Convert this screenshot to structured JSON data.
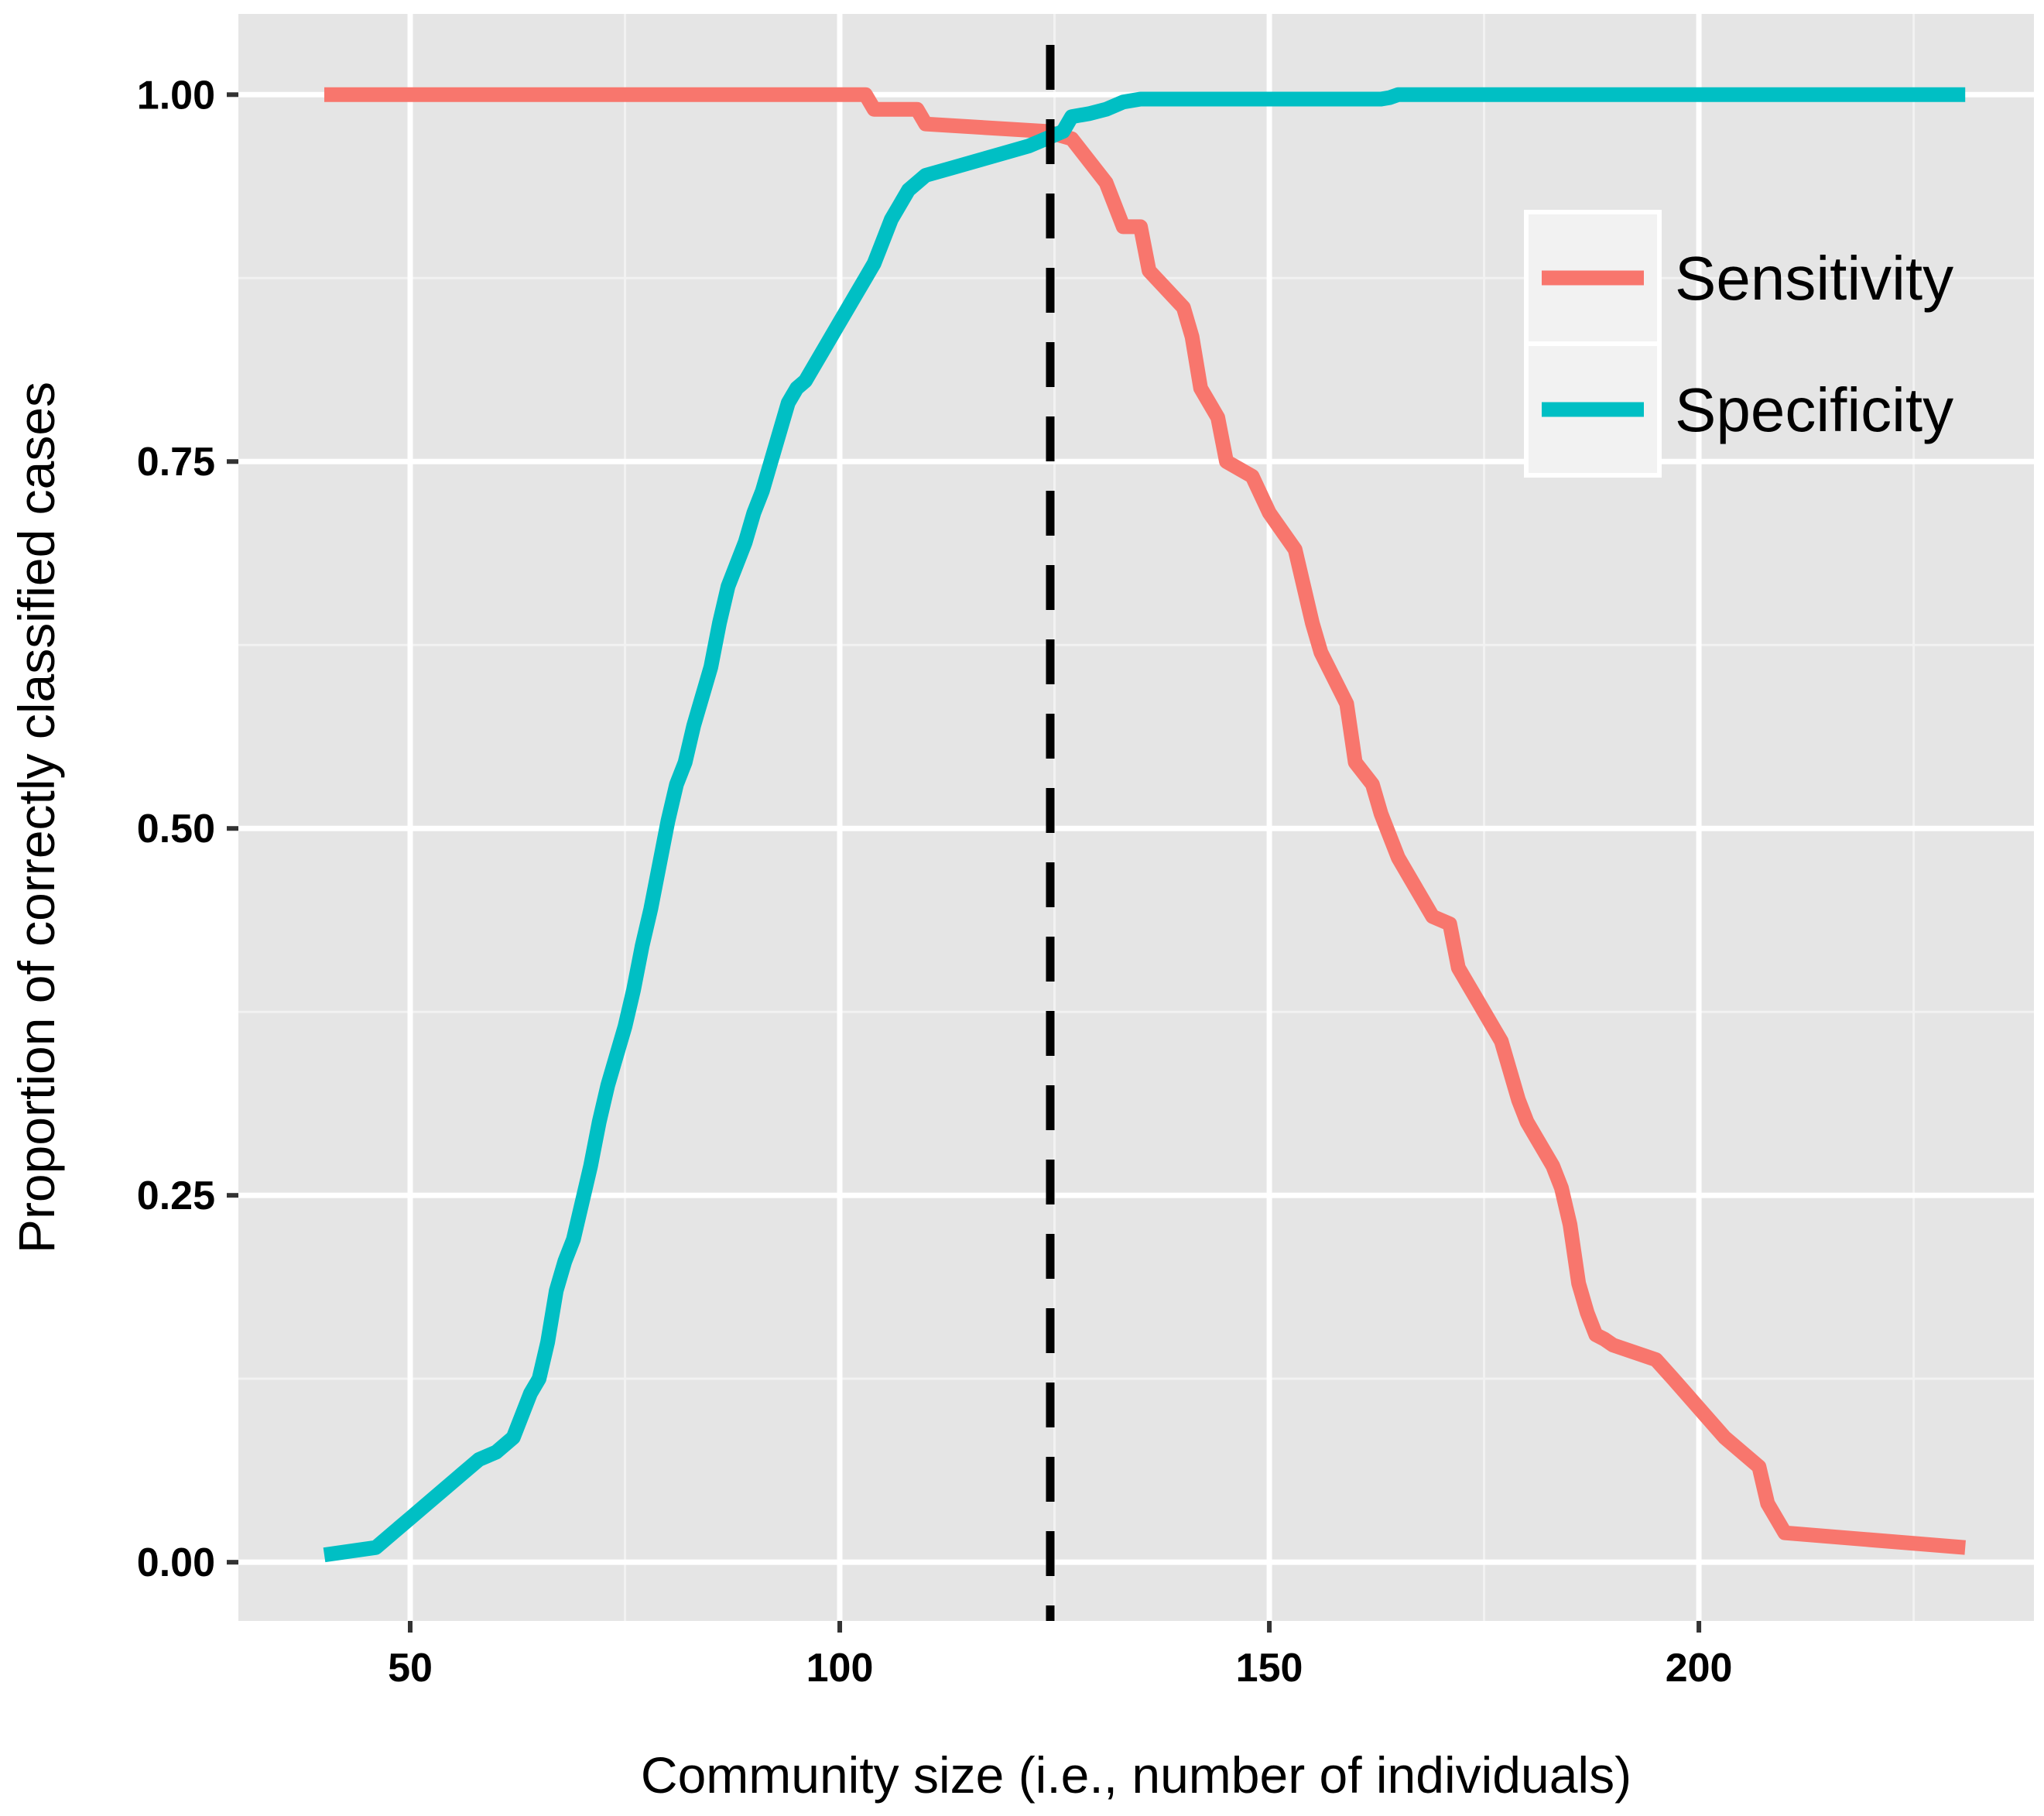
{
  "chart_data": {
    "type": "line",
    "xlabel": "Community size (i.e., number of individuals)",
    "ylabel": "Proportion of correctly classified cases",
    "xlim": [
      30,
      239
    ],
    "ylim": [
      -0.04,
      1.055
    ],
    "x_ticks": [
      50,
      100,
      150,
      200
    ],
    "x_tick_labels": [
      "50",
      "100",
      "150",
      "200"
    ],
    "y_ticks": [
      0,
      0.25,
      0.5,
      0.75,
      1
    ],
    "y_tick_labels": [
      "0.00",
      "0.25",
      "0.50",
      "0.75",
      "1.00"
    ],
    "grid": true,
    "legend_position": "top-right",
    "vline": {
      "x": 124.5,
      "style": "dashed",
      "color": "#000000"
    },
    "series": [
      {
        "name": "Sensitivity",
        "color": "#F8766D",
        "x": [
          40,
          103,
          104,
          109,
          110,
          124,
          127,
          131,
          133,
          135,
          136,
          140,
          141,
          142,
          144,
          145,
          148,
          150,
          153,
          155,
          156,
          159,
          160,
          162,
          163,
          165,
          167,
          169,
          171,
          172,
          173,
          174,
          175,
          176,
          177,
          178,
          179,
          180,
          181,
          182,
          183,
          184,
          185,
          186,
          187,
          188,
          189,
          190,
          195,
          197,
          200,
          203,
          207,
          208,
          210,
          231
        ],
        "y": [
          1.0,
          1.0,
          0.99,
          0.99,
          0.98,
          0.975,
          0.97,
          0.94,
          0.91,
          0.91,
          0.88,
          0.855,
          0.835,
          0.8,
          0.78,
          0.75,
          0.74,
          0.715,
          0.69,
          0.64,
          0.62,
          0.585,
          0.545,
          0.53,
          0.51,
          0.48,
          0.46,
          0.44,
          0.435,
          0.405,
          0.395,
          0.385,
          0.375,
          0.365,
          0.355,
          0.335,
          0.315,
          0.3,
          0.29,
          0.28,
          0.27,
          0.255,
          0.23,
          0.19,
          0.17,
          0.155,
          0.152,
          0.148,
          0.138,
          0.125,
          0.105,
          0.085,
          0.065,
          0.04,
          0.02,
          0.01
        ]
      },
      {
        "name": "Specificity",
        "color": "#00BFC4",
        "x": [
          40,
          46,
          48,
          50,
          52,
          54,
          56,
          58,
          60,
          62,
          63,
          64,
          65,
          66,
          67,
          68,
          69,
          70,
          71,
          72,
          73,
          74,
          75,
          76,
          77,
          78,
          79,
          80,
          81,
          82,
          83,
          84,
          85,
          86,
          87,
          88,
          89,
          90,
          91,
          92,
          93,
          94,
          95,
          96,
          97,
          98,
          99,
          100,
          101,
          102,
          103,
          104,
          105,
          106,
          107,
          108,
          109,
          110,
          113,
          116,
          119,
          122,
          124,
          126,
          127,
          129,
          131,
          133,
          135,
          142,
          148,
          155,
          162,
          163,
          164,
          165,
          170,
          231
        ],
        "y": [
          0.005,
          0.01,
          0.02,
          0.03,
          0.04,
          0.05,
          0.06,
          0.07,
          0.075,
          0.085,
          0.1,
          0.115,
          0.125,
          0.15,
          0.185,
          0.205,
          0.22,
          0.245,
          0.27,
          0.3,
          0.325,
          0.345,
          0.365,
          0.39,
          0.42,
          0.445,
          0.475,
          0.505,
          0.53,
          0.545,
          0.57,
          0.59,
          0.61,
          0.64,
          0.665,
          0.68,
          0.695,
          0.715,
          0.73,
          0.75,
          0.77,
          0.79,
          0.8,
          0.805,
          0.815,
          0.825,
          0.835,
          0.845,
          0.855,
          0.865,
          0.875,
          0.885,
          0.9,
          0.915,
          0.925,
          0.935,
          0.94,
          0.945,
          0.95,
          0.955,
          0.96,
          0.965,
          0.97,
          0.975,
          0.985,
          0.987,
          0.99,
          0.995,
          0.997,
          0.997,
          0.997,
          0.997,
          0.997,
          0.997,
          0.998,
          1.0,
          1.0,
          1.0
        ]
      }
    ]
  }
}
